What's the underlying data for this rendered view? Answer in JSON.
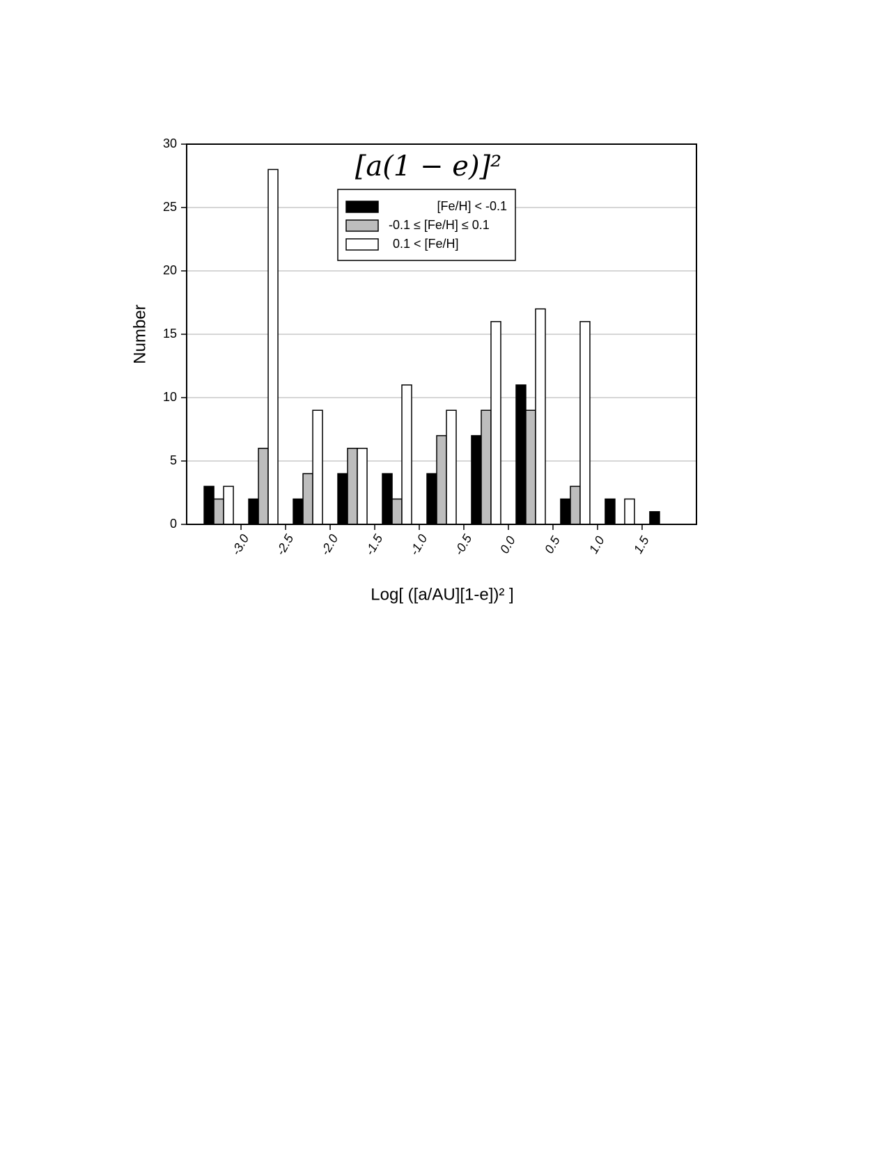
{
  "chart_data": {
    "type": "bar",
    "title": "[a(1 − e)]²",
    "x_label": "Log[ ([a/AU][1-e])² ]",
    "y_label": "Number",
    "x": [
      -3.25,
      -2.75,
      -2.25,
      -1.75,
      -1.25,
      -0.75,
      -0.25,
      0.25,
      0.75,
      1.25,
      1.75
    ],
    "series": [
      {
        "name": "[Fe/H] < -0.1",
        "color": "#000000",
        "values": [
          3,
          2,
          2,
          4,
          4,
          4,
          7,
          11,
          2,
          2,
          1
        ]
      },
      {
        "name": "-0.1 ≤ [Fe/H] ≤ 0.1",
        "color": "#bdbdbd",
        "values": [
          2,
          6,
          4,
          6,
          2,
          7,
          9,
          9,
          3,
          0,
          0
        ]
      },
      {
        "name": "0.1 < [Fe/H]",
        "color": "#ffffff",
        "values": [
          3,
          28,
          9,
          6,
          11,
          9,
          16,
          17,
          16,
          2,
          0
        ]
      }
    ],
    "xlim": [
      -3.61,
      2.11
    ],
    "xticks": [
      {
        "value": -3.0,
        "label": "-3.0"
      },
      {
        "value": -2.5,
        "label": "-2.5"
      },
      {
        "value": -2.0,
        "label": "-2.0"
      },
      {
        "value": -1.5,
        "label": "-1.5"
      },
      {
        "value": -1.0,
        "label": "-1.0"
      },
      {
        "value": -0.5,
        "label": "-0.5"
      },
      {
        "value": 0.0,
        "label": "0.0"
      },
      {
        "value": 0.5,
        "label": "0.5"
      },
      {
        "value": 1.0,
        "label": "1.0"
      },
      {
        "value": 1.5,
        "label": "1.5"
      }
    ],
    "ylim": [
      0,
      30
    ],
    "yticks": [
      0,
      5,
      10,
      15,
      20,
      25,
      30
    ],
    "grid": true,
    "legend": "top"
  }
}
